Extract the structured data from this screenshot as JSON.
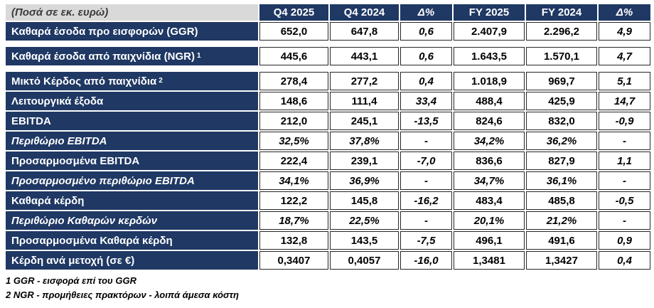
{
  "colors": {
    "header_navy": "#1F3864",
    "unit_grey": "#D9D9D9",
    "cell_border": "#262626"
  },
  "table": {
    "unit_label": "(Ποσά σε εκ. ευρώ)",
    "columns": [
      "Q4 2025",
      "Q4 2024",
      "Δ%",
      "FY 2025",
      "FY 2024",
      "Δ%"
    ],
    "rows": [
      {
        "label": "Καθαρά έσοδα προ εισφορών (GGR)",
        "sup": "",
        "italic": false,
        "values": [
          "652,0",
          "647,8",
          "0,6",
          "2.407,9",
          "2.296,2",
          "4,9"
        ]
      },
      {
        "label": "Καθαρά έσοδα από παιχνίδια (NGR)",
        "sup": "1",
        "italic": false,
        "values": [
          "445,6",
          "443,1",
          "0,6",
          "1.643,5",
          "1.570,1",
          "4,7"
        ]
      },
      {
        "label": "Μικτό Κέρδος από παιχνίδια",
        "sup": "2",
        "italic": false,
        "values": [
          "278,4",
          "277,2",
          "0,4",
          "1.018,9",
          "969,7",
          "5,1"
        ]
      },
      {
        "label": "Λειτουργικά έξοδα",
        "sup": "",
        "italic": false,
        "values": [
          "148,6",
          "111,4",
          "33,4",
          "488,4",
          "425,9",
          "14,7"
        ]
      },
      {
        "label": "EBITDA",
        "sup": "",
        "italic": false,
        "values": [
          "212,0",
          "245,1",
          "-13,5",
          "824,6",
          "832,0",
          "-0,9"
        ]
      },
      {
        "label": "Περιθώριο EBITDA",
        "sup": "",
        "italic": true,
        "values": [
          "32,5%",
          "37,8%",
          "-",
          "34,2%",
          "36,2%",
          "-"
        ]
      },
      {
        "label": "Προσαρμοσμένα EBITDA",
        "sup": "",
        "italic": false,
        "values": [
          "222,4",
          "239,1",
          "-7,0",
          "836,6",
          "827,9",
          "1,1"
        ]
      },
      {
        "label": "Προσαρμοσμένο περιθώριο EBITDA",
        "sup": "",
        "italic": true,
        "values": [
          "34,1%",
          "36,9%",
          "-",
          "34,7%",
          "36,1%",
          "-"
        ]
      },
      {
        "label": "Καθαρά κέρδη",
        "sup": "",
        "italic": false,
        "values": [
          "122,2",
          "145,8",
          "-16,2",
          "483,4",
          "485,8",
          "-0,5"
        ]
      },
      {
        "label": "Περιθώριο Καθαρών κερδών",
        "sup": "",
        "italic": true,
        "values": [
          "18,7%",
          "22,5%",
          "-",
          "20,1%",
          "21,2%",
          "-"
        ]
      },
      {
        "label": "Προσαρμοσμένα Καθαρά κέρδη",
        "sup": "",
        "italic": false,
        "values": [
          "132,8",
          "143,5",
          "-7,5",
          "496,1",
          "491,6",
          "0,9"
        ]
      },
      {
        "label": "Κέρδη ανά μετοχή (σε €)",
        "sup": "",
        "italic": false,
        "values": [
          "0,3407",
          "0,4057",
          "-16,0",
          "1,3481",
          "1,3427",
          "0,4"
        ]
      }
    ]
  },
  "footnotes": [
    "1 GGR - εισφορά επί του GGR",
    "2 NGR - προμήθειες πρακτόρων - λοιπά άμεσα κόστη"
  ]
}
